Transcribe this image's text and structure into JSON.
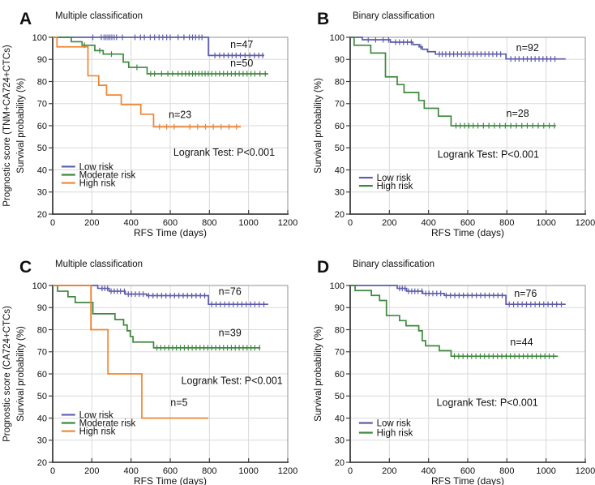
{
  "chart_data": {
    "type": "line",
    "subtype": "kaplan-meier-survival",
    "x_label": "RFS Time (days)",
    "x_ticks": [
      0,
      200,
      400,
      600,
      800,
      1000,
      1200
    ],
    "x_range": [
      0,
      1200
    ],
    "y_label": "Survival probability (%)",
    "y_ticks": [
      100,
      90,
      80,
      70,
      60,
      50,
      40,
      30,
      20
    ],
    "y_range": [
      20,
      100
    ],
    "grid": true,
    "legend_position": "lower-left-inside",
    "panels": [
      {
        "letter": "A",
        "title": "Multiple classification",
        "row_ylabel": "Prognostic score (TNM+CA724+CTCs)",
        "inner_ylabel": "Survival probability (%)",
        "logrank": {
          "text": "Logrank Test: P<0.001",
          "x": 875,
          "y": 46.5
        },
        "legend": {
          "x_line": [
            45,
            115
          ],
          "x_text": 135,
          "items": [
            {
              "label": "Low risk",
              "color": "low",
              "y": 41.5
            },
            {
              "label": "Moderate risk",
              "color": "moderate",
              "y": 37.8
            },
            {
              "label": "High risk",
              "color": "high",
              "y": 34.1
            }
          ]
        },
        "series": [
          {
            "name": "Low risk",
            "color": "low",
            "n": {
              "text": "n=47",
              "x": 965,
              "y": 95.3
            },
            "steps": [
              [
                0,
                100
              ],
              [
                795,
                91.8
              ],
              [
                1080,
                91.8
              ]
            ],
            "censors": [
              205,
              248,
              262,
              272,
              282,
              292,
              302,
              314,
              326,
              356,
              420,
              448,
              468,
              498,
              520,
              543,
              562,
              582,
              600,
              640,
              670,
              698,
              714,
              730,
              747,
              762,
              828,
              852,
              874,
              896,
              916,
              936,
              958,
              982,
              1006,
              1030,
              1052,
              1072
            ]
          },
          {
            "name": "Moderate risk",
            "color": "moderate",
            "n": {
              "text": "n=50",
              "x": 965,
              "y": 86.8
            },
            "steps": [
              [
                0,
                100
              ],
              [
                95,
                98
              ],
              [
                150,
                96.4
              ],
              [
                215,
                94
              ],
              [
                258,
                92.4
              ],
              [
                360,
                88.8
              ],
              [
                388,
                86.4
              ],
              [
                482,
                83.5
              ],
              [
                1100,
                83.5
              ]
            ],
            "censors": [
              162,
              240,
              300,
              430,
              500,
              520,
              556,
              588,
              612,
              640,
              660,
              678,
              696,
              714,
              730,
              746,
              762,
              778,
              794,
              812,
              832,
              852,
              872,
              892,
              912,
              932,
              952,
              972,
              992,
              1012,
              1032,
              1058,
              1085
            ]
          },
          {
            "name": "High risk",
            "color": "high",
            "n": {
              "text": "n=23",
              "x": 650,
              "y": 63.5
            },
            "steps": [
              [
                0,
                100
              ],
              [
                22,
                95.7
              ],
              [
                180,
                82.6
              ],
              [
                235,
                78.3
              ],
              [
                275,
                73.9
              ],
              [
                350,
                69.6
              ],
              [
                450,
                65.2
              ],
              [
                515,
                59.5
              ],
              [
                960,
                59.5
              ]
            ],
            "censors": [
              545,
              582,
              620,
              700,
              740,
              780,
              820,
              860,
              900,
              938
            ]
          }
        ]
      },
      {
        "letter": "B",
        "title": "Binary classification",
        "row_ylabel": "",
        "inner_ylabel": "Survival probability (%)",
        "logrank": {
          "text": "Logrank Test: P<0.001",
          "x": 705,
          "y": 45.5
        },
        "legend": {
          "x_line": [
            45,
            115
          ],
          "x_text": 135,
          "items": [
            {
              "label": "Low risk",
              "color": "low",
              "y": 36.5
            },
            {
              "label": "High risk",
              "color": "moderate",
              "y": 32.8
            }
          ]
        },
        "series": [
          {
            "name": "Low risk",
            "color": "low",
            "n": {
              "text": "n=92",
              "x": 905,
              "y": 93.8
            },
            "steps": [
              [
                0,
                100
              ],
              [
                62,
                98.9
              ],
              [
                205,
                97.8
              ],
              [
                320,
                96.7
              ],
              [
                352,
                95.7
              ],
              [
                368,
                94.6
              ],
              [
                395,
                93.5
              ],
              [
                435,
                92.4
              ],
              [
                795,
                90.2
              ],
              [
                1100,
                90.2
              ]
            ],
            "censors": [
              92,
              130,
              168,
              196,
              232,
              252,
              272,
              292,
              312,
              360,
              455,
              470,
              488,
              508,
              528,
              548,
              568,
              588,
              608,
              628,
              648,
              668,
              688,
              708,
              728,
              748,
              768,
              820,
              842,
              862,
              884,
              904,
              924,
              944,
              964,
              984,
              1004,
              1024,
              1045
            ]
          },
          {
            "name": "High risk",
            "color": "moderate",
            "n": {
              "text": "n=28",
              "x": 855,
              "y": 64.0
            },
            "steps": [
              [
                0,
                100
              ],
              [
                20,
                96.4
              ],
              [
                105,
                92.9
              ],
              [
                180,
                82.1
              ],
              [
                240,
                78.6
              ],
              [
                275,
                75
              ],
              [
                350,
                71.4
              ],
              [
                378,
                67.9
              ],
              [
                450,
                64.3
              ],
              [
                515,
                60
              ],
              [
                1050,
                60
              ]
            ],
            "censors": [
              540,
              562,
              584,
              606,
              628,
              652,
              680,
              708,
              736,
              764,
              792,
              820,
              848,
              876,
              904,
              932,
              960,
              988,
              1016,
              1042
            ]
          }
        ]
      },
      {
        "letter": "C",
        "title": "Multiple classification",
        "row_ylabel": "Prognostic score (CA724+CTCs)",
        "inner_ylabel": "Survival probability (%)",
        "logrank": {
          "text": "Logrank Test: P<0.001",
          "x": 915,
          "y": 55.5
        },
        "legend": {
          "x_line": [
            45,
            115
          ],
          "x_text": 135,
          "items": [
            {
              "label": "Low risk",
              "color": "low",
              "y": 41.5
            },
            {
              "label": "Moderate risk",
              "color": "moderate",
              "y": 37.8
            },
            {
              "label": "High risk",
              "color": "high",
              "y": 34.1
            }
          ]
        },
        "series": [
          {
            "name": "Low risk",
            "color": "low",
            "n": {
              "text": "n=76",
              "x": 905,
              "y": 95.8
            },
            "steps": [
              [
                0,
                100
              ],
              [
                230,
                98.7
              ],
              [
                288,
                97.4
              ],
              [
                370,
                96.1
              ],
              [
                480,
                95.4
              ],
              [
                795,
                91.5
              ],
              [
                1100,
                91.5
              ]
            ],
            "censors": [
              252,
              266,
              280,
              298,
              314,
              330,
              346,
              366,
              386,
              402,
              422,
              442,
              462,
              490,
              512,
              534,
              556,
              578,
              600,
              622,
              644,
              666,
              688,
              710,
              732,
              754,
              776,
              812,
              834,
              856,
              878,
              900,
              922,
              944,
              966,
              988,
              1010,
              1032,
              1054,
              1078
            ]
          },
          {
            "name": "Moderate risk",
            "color": "moderate",
            "n": {
              "text": "n=39",
              "x": 905,
              "y": 77.0
            },
            "steps": [
              [
                0,
                100
              ],
              [
                25,
                97.4
              ],
              [
                78,
                94.9
              ],
              [
                115,
                92.3
              ],
              [
                205,
                87.2
              ],
              [
                318,
                84.6
              ],
              [
                362,
                82.1
              ],
              [
                380,
                79.5
              ],
              [
                396,
                76.9
              ],
              [
                410,
                74.4
              ],
              [
                515,
                71.8
              ],
              [
                1060,
                71.8
              ]
            ],
            "censors": [
              532,
              552,
              572,
              592,
              612,
              632,
              652,
              672,
              692,
              712,
              732,
              752,
              772,
              792,
              812,
              832,
              852,
              872,
              892,
              912,
              932,
              952,
              972,
              992,
              1012,
              1032,
              1056
            ]
          },
          {
            "name": "High risk",
            "color": "high",
            "n": {
              "text": "n=5",
              "x": 645,
              "y": 45.5
            },
            "steps": [
              [
                0,
                100
              ],
              [
                195,
                80
              ],
              [
                282,
                60
              ],
              [
                455,
                40
              ],
              [
                795,
                40
              ]
            ],
            "censors": []
          }
        ]
      },
      {
        "letter": "D",
        "title": "Binary classification",
        "row_ylabel": "",
        "inner_ylabel": "Survival probability (%)",
        "logrank": {
          "text": "Logrank Test: P<0.001",
          "x": 700,
          "y": 45.5
        },
        "legend": {
          "x_line": [
            45,
            115
          ],
          "x_text": 135,
          "items": [
            {
              "label": "Low risk",
              "color": "low",
              "y": 37.8
            },
            {
              "label": "High risk",
              "color": "moderate",
              "y": 33.4
            }
          ]
        },
        "series": [
          {
            "name": "Low risk",
            "color": "low",
            "n": {
              "text": "n=76",
              "x": 895,
              "y": 94.8
            },
            "steps": [
              [
                0,
                100
              ],
              [
                240,
                98.7
              ],
              [
                288,
                97.4
              ],
              [
                370,
                96.4
              ],
              [
                480,
                95.5
              ],
              [
                795,
                91.5
              ],
              [
                1100,
                91.5
              ]
            ],
            "censors": [
              252,
              266,
              280,
              298,
              314,
              330,
              346,
              366,
              386,
              402,
              422,
              442,
              462,
              490,
              512,
              534,
              556,
              578,
              600,
              622,
              644,
              666,
              688,
              710,
              732,
              754,
              776,
              812,
              834,
              856,
              878,
              900,
              922,
              944,
              966,
              988,
              1010,
              1032,
              1054,
              1078
            ]
          },
          {
            "name": "High risk",
            "color": "moderate",
            "n": {
              "text": "n=44",
              "x": 875,
              "y": 72.8
            },
            "steps": [
              [
                0,
                100
              ],
              [
                25,
                97.7
              ],
              [
                108,
                95.5
              ],
              [
                150,
                93.2
              ],
              [
                185,
                86.4
              ],
              [
                252,
                84.1
              ],
              [
                285,
                81.8
              ],
              [
                350,
                79.5
              ],
              [
                368,
                75
              ],
              [
                385,
                72.7
              ],
              [
                455,
                70.5
              ],
              [
                515,
                68
              ],
              [
                1060,
                68
              ]
            ],
            "censors": [
              532,
              554,
              576,
              598,
              620,
              642,
              664,
              686,
              708,
              730,
              752,
              774,
              796,
              818,
              840,
              862,
              884,
              906,
              928,
              950,
              972,
              994,
              1016,
              1038
            ]
          }
        ]
      }
    ]
  },
  "layout_colors": {
    "low": "#5C5CAC",
    "moderate": "#3E883E",
    "high": "#EF8532",
    "axis": "#3f3f3f",
    "frame": "#909090",
    "grid": "#d9d9d9",
    "text": "#111111",
    "background": "#ffffff"
  }
}
